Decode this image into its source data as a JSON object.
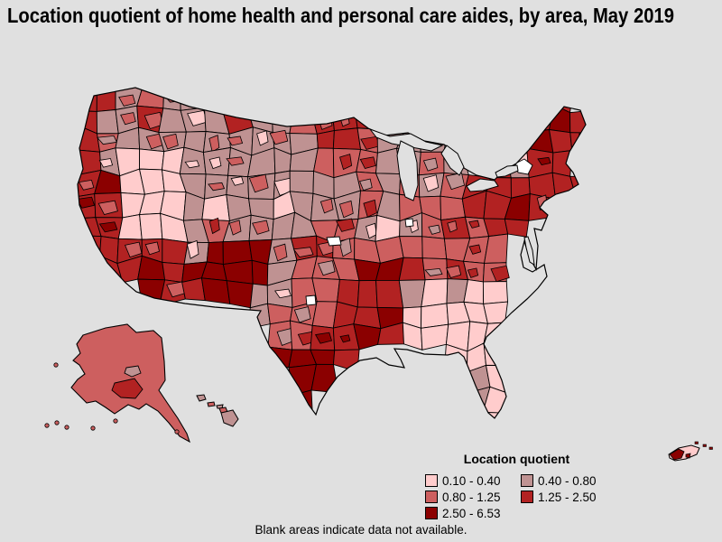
{
  "title": "Location quotient of home health and personal care aides, by area, May 2019",
  "legend": {
    "title": "Location quotient",
    "columns": [
      [
        {
          "label": "0.10 - 0.40",
          "class_index": 0
        },
        {
          "label": "0.80 - 1.25",
          "class_index": 2
        },
        {
          "label": "2.50 - 6.53",
          "class_index": 4
        }
      ],
      [
        {
          "label": "0.40 - 0.80",
          "class_index": 1
        },
        {
          "label": "1.25 - 2.50",
          "class_index": 3
        }
      ]
    ]
  },
  "footnote": "Blank areas indicate data not available.",
  "colors": {
    "background": "#e0e0e0",
    "border": "#000000",
    "no_data": "#ffffff",
    "classes": [
      "#ffcccc",
      "#bf9292",
      "#cd5f5f",
      "#b22222",
      "#8b0000"
    ]
  },
  "map": {
    "type": "choropleth",
    "measure": "Location quotient of home health and personal care aides",
    "period": "May 2019",
    "class_ranges": [
      "0.10 - 0.40",
      "0.40 - 0.80",
      "0.80 - 1.25",
      "1.25 - 2.50",
      "2.50 - 6.53"
    ],
    "insets": [
      "Alaska",
      "Hawaii",
      "Puerto Rico"
    ],
    "cells": [
      "331211111............33.",
      "31131113112333.......343",
      "32111111111332111....433",
      "310001111112221121.3133.",
      "340001111111121212333333",
      "33000101101112122233433.",
      "330001211112210123233...",
      "33333144413322222222....",
      ".3343444412224432322....",
      "...43344112233310100....",
      "........122233400000....",
      ".........22334300000....",
      ".........4443....000....",
      "..........44......10....",
      "..........4.......10....",
      "..................00...."
    ]
  }
}
